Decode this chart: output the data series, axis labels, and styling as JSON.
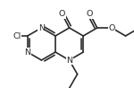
{
  "background_color": "#ffffff",
  "line_color": "#2a2a2a",
  "line_width": 1.2,
  "figsize": [
    1.5,
    0.98
  ],
  "dpi": 100,
  "xlim": [
    0,
    150
  ],
  "ylim": [
    0,
    98
  ],
  "BL": 18.0,
  "jmx": 62.0,
  "jmy": 49.0,
  "label_fontsize": 6.8,
  "label_color": "#2a2a2a"
}
